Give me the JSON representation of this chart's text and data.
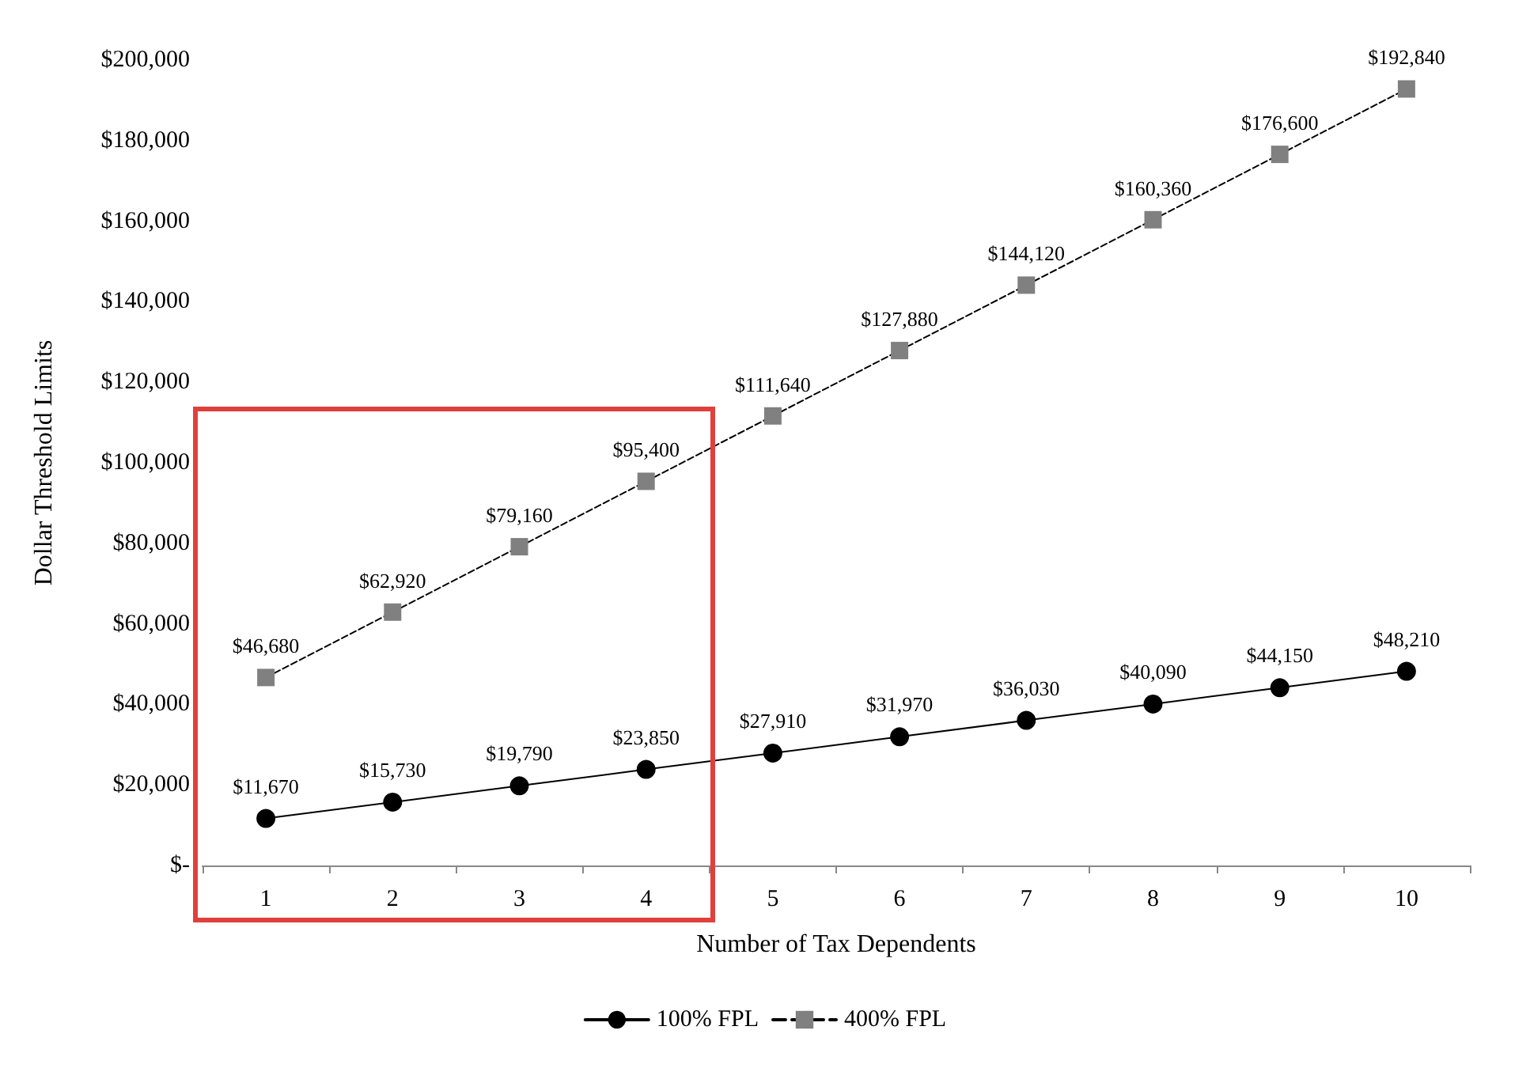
{
  "chart_data": {
    "type": "line",
    "xlabel": "Number of Tax Dependents",
    "ylabel": "Dollar Threshold Limits",
    "categories": [
      "1",
      "2",
      "3",
      "4",
      "5",
      "6",
      "7",
      "8",
      "9",
      "10"
    ],
    "series": [
      {
        "name": "100% FPL",
        "color": "#000000",
        "marker": "circle",
        "line_style": "solid",
        "values": [
          11670,
          15730,
          19790,
          23850,
          27910,
          31970,
          36030,
          40090,
          44150,
          48210
        ],
        "value_labels": [
          "$11,670",
          "$15,730",
          "$19,790",
          "$23,850",
          "$27,910",
          "$31,970",
          "$36,030",
          "$40,090",
          "$44,150",
          "$48,210"
        ]
      },
      {
        "name": "400% FPL",
        "color": "#808080",
        "marker": "square",
        "line_style": "dashed",
        "values": [
          46680,
          62920,
          79160,
          95400,
          111640,
          127880,
          144120,
          160360,
          176600,
          192840
        ],
        "value_labels": [
          "$46,680",
          "$62,920",
          "$79,160",
          "$95,400",
          "$111,640",
          "$127,880",
          "$144,120",
          "$160,360",
          "$176,600",
          "$192,840"
        ]
      }
    ],
    "ylim": [
      0,
      200000
    ],
    "yticks": [
      {
        "value": 0,
        "label": "$-"
      },
      {
        "value": 20000,
        "label": "$20,000"
      },
      {
        "value": 40000,
        "label": "$40,000"
      },
      {
        "value": 60000,
        "label": "$60,000"
      },
      {
        "value": 80000,
        "label": "$80,000"
      },
      {
        "value": 100000,
        "label": "$100,000"
      },
      {
        "value": 120000,
        "label": "$120,000"
      },
      {
        "value": 140000,
        "label": "$140,000"
      },
      {
        "value": 160000,
        "label": "$160,000"
      },
      {
        "value": 180000,
        "label": "$180,000"
      },
      {
        "value": 200000,
        "label": "$200,000"
      }
    ],
    "grid": false,
    "legend": "bottom"
  }
}
